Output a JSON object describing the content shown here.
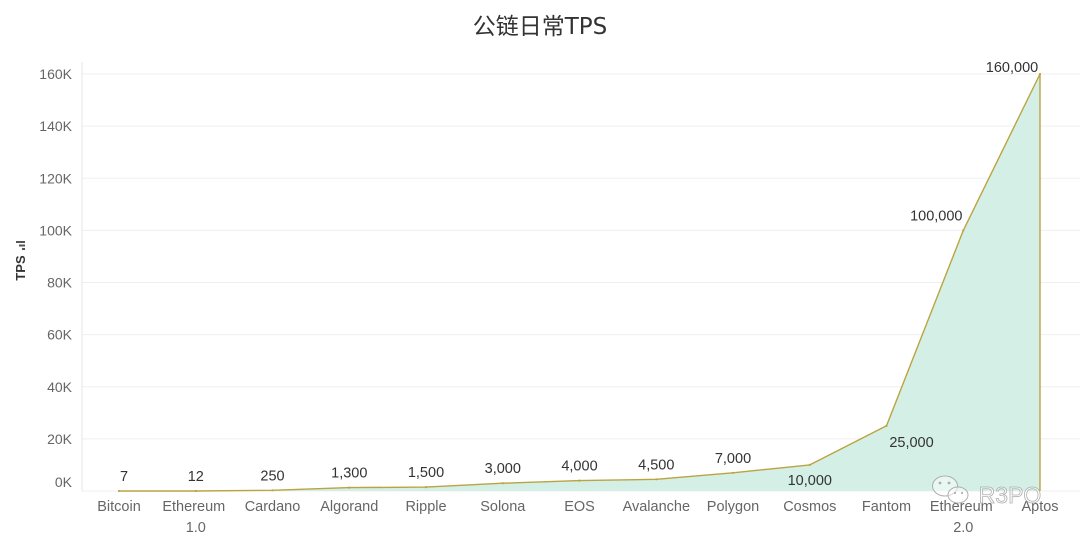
{
  "chart_data": {
    "type": "area",
    "title": "公链日常TPS",
    "xlabel": "",
    "ylabel": "TPS",
    "categories": [
      "Bitcoin",
      "Ethereum 1.0",
      "Cardano",
      "Algorand",
      "Ripple",
      "Solona",
      "EOS",
      "Avalanche",
      "Polygon",
      "Cosmos",
      "Fantom",
      "Ethereum 2.0",
      "Aptos"
    ],
    "values": [
      7,
      12,
      250,
      1300,
      1500,
      3000,
      4000,
      4500,
      7000,
      10000,
      25000,
      100000,
      160000
    ],
    "data_labels": [
      "7",
      "12",
      "250",
      "1,300",
      "1,500",
      "3,000",
      "4,000",
      "4,500",
      "7,000",
      "10,000",
      "25,000",
      "100,000",
      "160,000"
    ],
    "ylim": [
      0,
      160000
    ],
    "y_ticks": [
      0,
      20000,
      40000,
      60000,
      80000,
      100000,
      120000,
      140000,
      160000
    ],
    "y_tick_labels": [
      "0K",
      "20K",
      "40K",
      "60K",
      "80K",
      "100K",
      "120K",
      "140K",
      "160K"
    ],
    "grid": true,
    "legend": "none",
    "colors": {
      "line": "#bba440",
      "fill": "#d4efe5"
    }
  },
  "axis_icons": {
    "ylabel_icon": "sort-bars-icon"
  },
  "watermark": {
    "text": "R3PO",
    "icon": "wechat-icon"
  }
}
